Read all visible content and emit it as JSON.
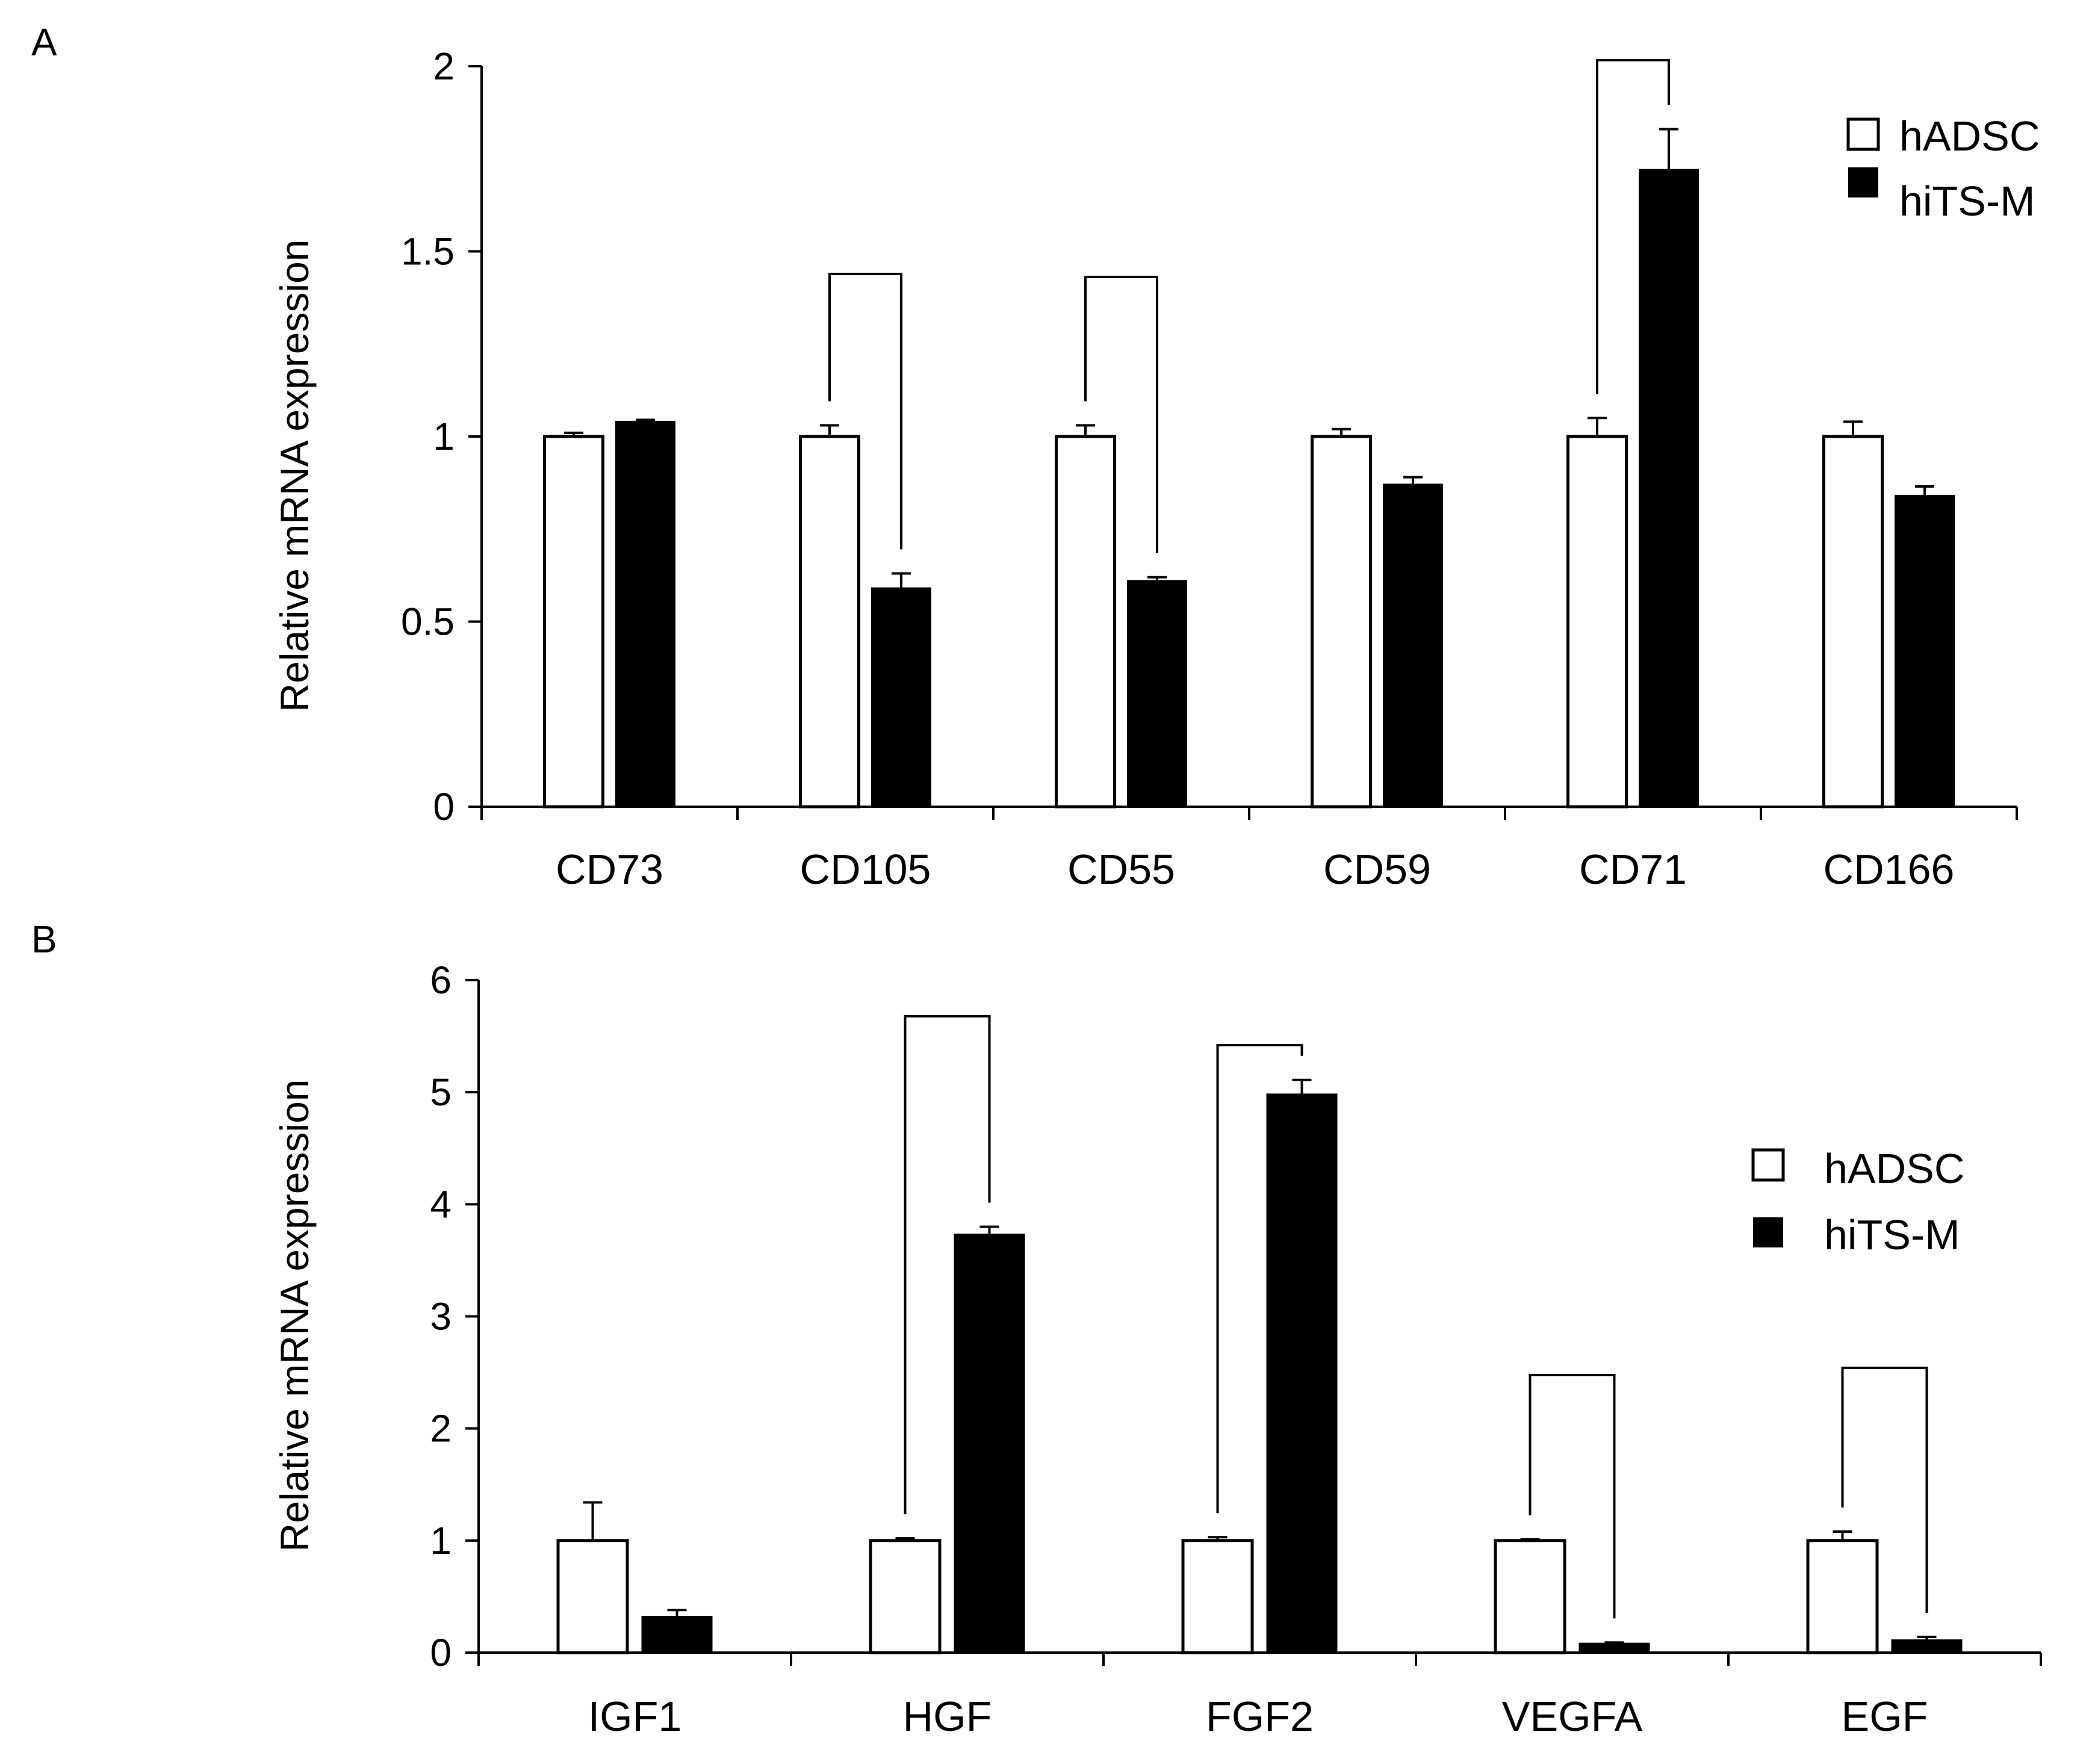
{
  "colors": {
    "hADSC": "#ffffff",
    "hiTS-M": "#000000",
    "axis": "#000000"
  },
  "chart_data": [
    {
      "panel": "A",
      "type": "bar",
      "ylabel": "Relative mRNA expression",
      "ylim": [
        0,
        2
      ],
      "yticks": [
        "0",
        "0.5",
        "1",
        "1.5",
        "2"
      ],
      "yticks_values": [
        0,
        0.5,
        1,
        1.5,
        2
      ],
      "categories": [
        "CD73",
        "CD105",
        "CD55",
        "CD59",
        "CD71",
        "CD166"
      ],
      "series": [
        {
          "name": "hADSC",
          "values": [
            1.0,
            1.0,
            1.0,
            1.0,
            1.0,
            1.0
          ],
          "errors": [
            0.01,
            0.03,
            0.03,
            0.02,
            0.05,
            0.04
          ]
        },
        {
          "name": "hiTS-M",
          "values": [
            1.04,
            0.59,
            0.61,
            0.87,
            1.72,
            0.84
          ],
          "errors": [
            0.005,
            0.04,
            0.01,
            0.02,
            0.11,
            0.025
          ]
        }
      ],
      "significance_pairs": [
        1,
        2,
        4
      ],
      "legend": {
        "entries": [
          "hADSC",
          "hiTS-M"
        ],
        "placement": "top-right"
      }
    },
    {
      "panel": "B",
      "type": "bar",
      "ylabel": "Relative mRNA expression",
      "ylim": [
        0,
        6
      ],
      "yticks": [
        "0",
        "1",
        "2",
        "3",
        "4",
        "5",
        "6"
      ],
      "yticks_values": [
        0,
        1,
        2,
        3,
        4,
        5,
        6
      ],
      "categories": [
        "IGF1",
        "HGF",
        "FGF2",
        "VEGFA",
        "EGF"
      ],
      "series": [
        {
          "name": "hADSC",
          "values": [
            1.0,
            1.0,
            1.0,
            1.0,
            1.0
          ],
          "errors": [
            0.34,
            0.02,
            0.03,
            0.01,
            0.08
          ]
        },
        {
          "name": "hiTS-M",
          "values": [
            0.32,
            3.73,
            4.98,
            0.08,
            0.11
          ],
          "errors": [
            0.06,
            0.07,
            0.13,
            0.01,
            0.03
          ]
        }
      ],
      "significance_pairs": [
        1,
        2,
        3,
        4
      ],
      "legend": {
        "entries": [
          "hADSC",
          "hiTS-M"
        ],
        "placement": "right"
      }
    }
  ]
}
